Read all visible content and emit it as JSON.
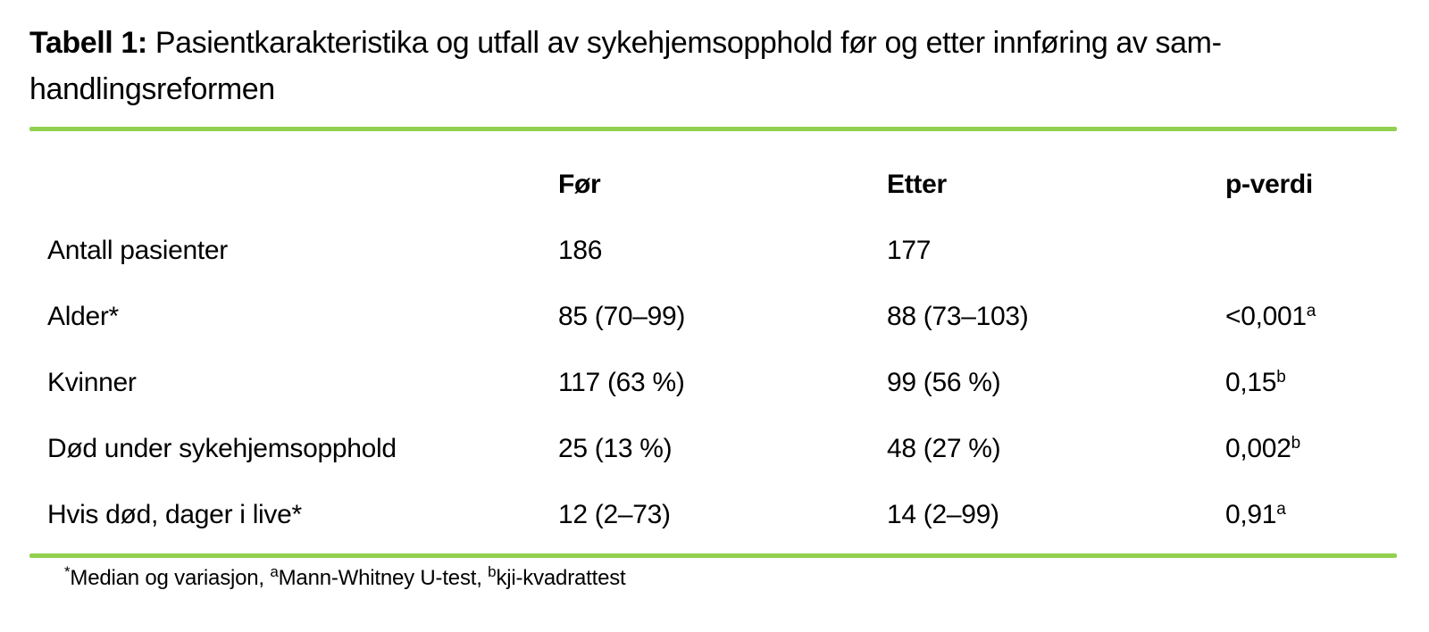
{
  "title": {
    "prefix": "Tabell 1:",
    "line1": "Pasientkarakteristika og utfall av sykehjemsopphold før og etter innføring av sam-",
    "line2": "handlingsreformen"
  },
  "colors": {
    "rule_green": "#92D050",
    "text": "#000000"
  },
  "table": {
    "headers": {
      "label": "",
      "before": "Før",
      "after": "Etter",
      "p": "p-verdi"
    },
    "rows": [
      {
        "label": "Antall pasienter",
        "before": "186",
        "after": "177",
        "p": "",
        "p_sup": ""
      },
      {
        "label": "Alder*",
        "before": "85 (70–99)",
        "after": "88 (73–103)",
        "p": "<0,001",
        "p_sup": "a"
      },
      {
        "label": "Kvinner",
        "before": "117 (63 %)",
        "after": "99 (56 %)",
        "p": "0,15",
        "p_sup": "b"
      },
      {
        "label": "Død under sykehjemsopphold",
        "before": "25 (13 %)",
        "after": "48 (27 %)",
        "p": "0,002",
        "p_sup": "b"
      },
      {
        "label": "Hvis død, dager i live*",
        "before": "12 (2–73)",
        "after": "14 (2–99)",
        "p": "0,91",
        "p_sup": "a"
      }
    ]
  },
  "footnote": {
    "sup1": "*",
    "text1": "Median og variasjon, ",
    "sup2": "a",
    "text2": "Mann-Whitney U-test, ",
    "sup3": "b",
    "text3": "kji-kvadrattest"
  }
}
